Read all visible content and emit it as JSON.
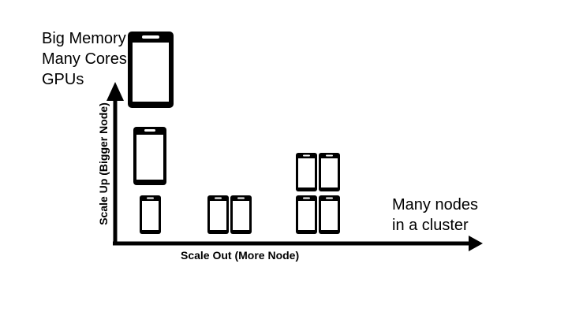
{
  "diagram": {
    "top_labels": [
      "Big Memory",
      "Many Cores",
      "GPUs"
    ],
    "right_labels": [
      "Many nodes",
      "in a cluster"
    ],
    "y_axis_title": "Scale Up (Bigger Node)",
    "x_axis_title": "Scale Out (More Node)",
    "colors": {
      "ink": "#000000",
      "screen": "#ffffff"
    },
    "icons": {
      "node": "phone-node-icon",
      "arrow": "arrowhead-icon"
    }
  }
}
